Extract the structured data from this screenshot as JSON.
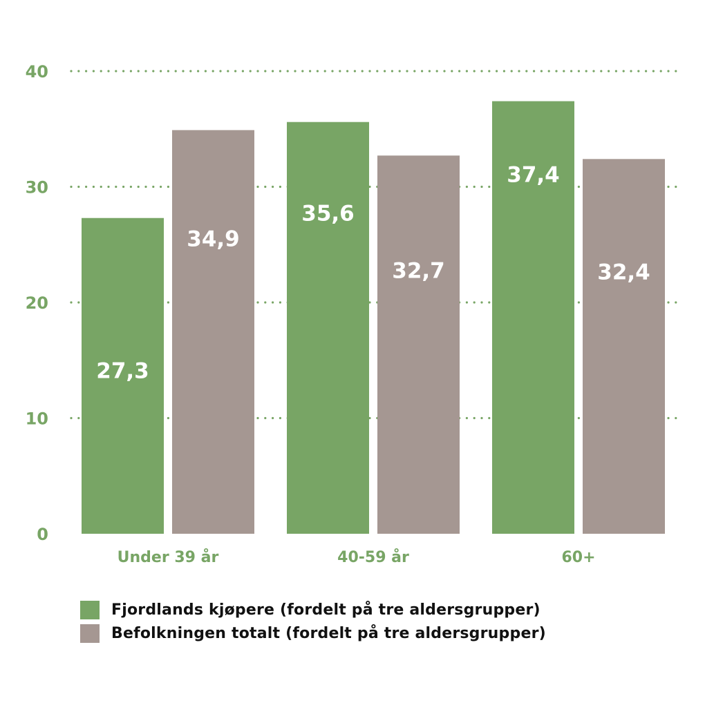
{
  "chart_data": {
    "type": "bar",
    "title": "",
    "xlabel": "",
    "ylabel": "",
    "ylim": [
      0,
      40
    ],
    "yticks": [
      0,
      10,
      20,
      30,
      40
    ],
    "ytick_labels": [
      "0",
      "10",
      "20",
      "30",
      "40"
    ],
    "grid": true,
    "grid_style": "dotted",
    "legend_position": "bottom-left",
    "categories": [
      "Under 39 år",
      "40-59 år",
      "60+"
    ],
    "series": [
      {
        "name": "Fjordlands kjøpere (fordelt på tre aldersgrupper)",
        "values": [
          27.3,
          35.6,
          37.4
        ],
        "labels": [
          "27,3",
          "35,6",
          "37,4"
        ],
        "color": "#78a565"
      },
      {
        "name": "Befolkningen totalt (fordelt på tre aldersgrupper)",
        "values": [
          34.9,
          32.7,
          32.4
        ],
        "labels": [
          "34,9",
          "32,7",
          "32,4"
        ],
        "color": "#a59792"
      }
    ],
    "axis_color": "#78a565",
    "label_color": "#ffffff"
  }
}
